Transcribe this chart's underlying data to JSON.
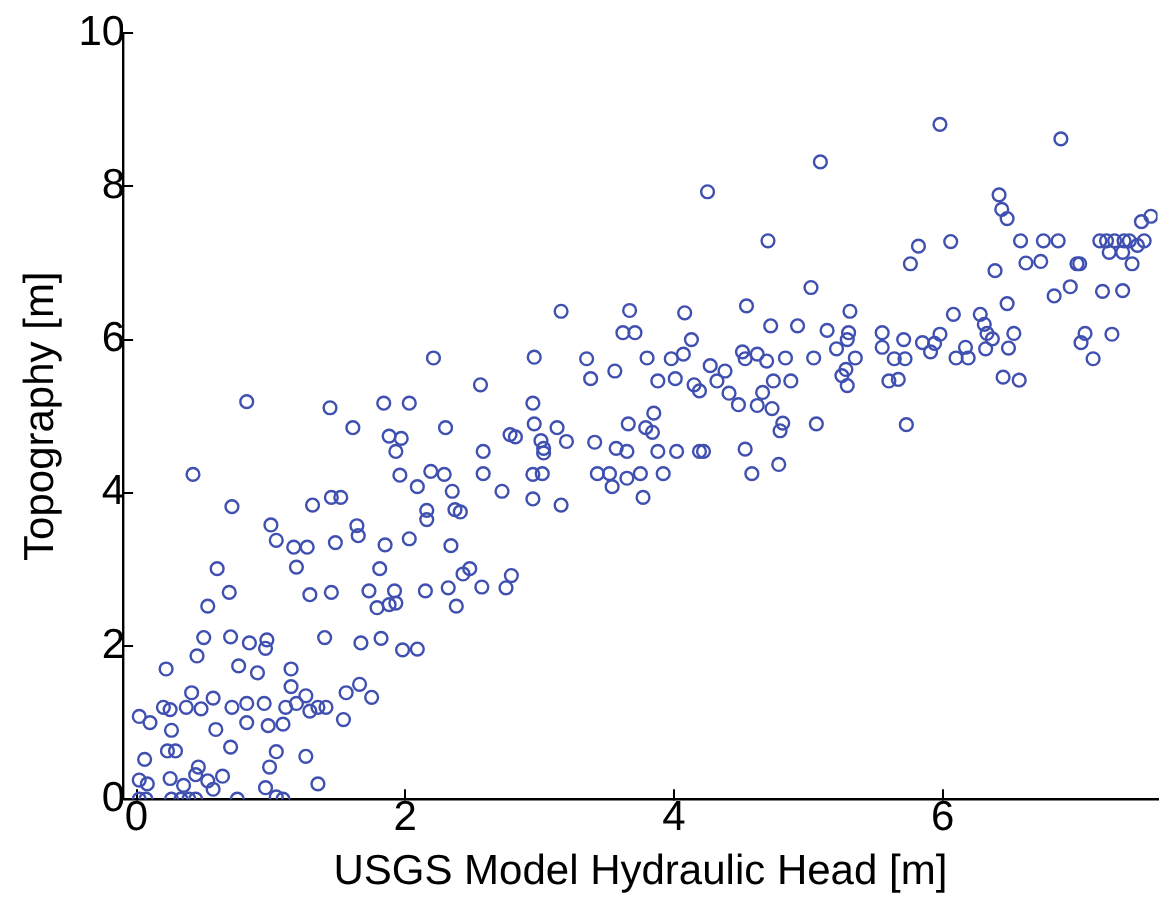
{
  "chart_data": {
    "type": "scatter",
    "xlabel": "USGS Model Hydraulic Head [m]",
    "ylabel": "Topography [m]",
    "xlim": [
      -0.1,
      7.6
    ],
    "ylim": [
      0,
      10
    ],
    "xticks": [
      0,
      2,
      4,
      6
    ],
    "yticks": [
      0,
      2,
      4,
      6,
      8,
      10
    ],
    "grid": false,
    "legend": false,
    "marker": "circle",
    "series": [
      {
        "color": "#4050b0",
        "x": [
          0.02,
          0.1,
          0.06,
          0.02,
          0.08,
          0.02,
          0.07,
          0.22,
          0.2,
          0.25,
          0.26,
          0.23,
          0.29,
          0.25,
          0.26,
          0.33,
          0.35,
          0.39,
          0.44,
          0.42,
          0.45,
          0.41,
          0.37,
          0.48,
          0.46,
          0.44,
          0.53,
          0.57,
          0.64,
          0.5,
          0.53,
          0.6,
          0.57,
          0.59,
          0.7,
          0.75,
          0.69,
          0.71,
          0.7,
          0.71,
          0.76,
          0.82,
          0.82,
          0.84,
          0.9,
          0.82,
          0.97,
          0.96,
          0.96,
          0.98,
          0.95,
          1.0,
          1.04,
          0.99,
          1.04,
          1.04,
          1.09,
          1.09,
          1.11,
          1.15,
          1.15,
          1.17,
          1.19,
          1.19,
          1.26,
          1.27,
          1.26,
          1.29,
          1.31,
          1.29,
          1.35,
          1.35,
          1.41,
          1.4,
          1.44,
          1.45,
          1.45,
          1.48,
          1.52,
          1.54,
          1.56,
          1.61,
          1.64,
          1.65,
          1.66,
          1.67,
          1.73,
          1.75,
          1.79,
          1.81,
          1.82,
          1.85,
          1.84,
          1.88,
          1.88,
          1.92,
          1.93,
          1.93,
          1.97,
          1.96,
          1.98,
          2.03,
          2.03,
          2.09,
          2.09,
          2.15,
          2.16,
          2.16,
          2.19,
          2.21,
          2.29,
          2.3,
          2.32,
          2.34,
          2.35,
          2.38,
          2.37,
          2.41,
          2.43,
          2.48,
          2.56,
          2.58,
          2.58,
          2.57,
          2.72,
          2.75,
          2.78,
          2.79,
          2.82,
          2.95,
          2.96,
          2.96,
          2.95,
          2.95,
          3.01,
          3.02,
          3.03,
          3.03,
          3.13,
          3.16,
          3.16,
          3.2,
          3.35,
          3.38,
          3.41,
          3.43,
          3.52,
          3.54,
          3.56,
          3.57,
          3.62,
          3.65,
          3.65,
          3.67,
          3.71,
          3.66,
          3.75,
          3.77,
          3.79,
          3.8,
          3.84,
          3.85,
          3.88,
          3.88,
          3.92,
          3.98,
          4.01,
          4.02,
          4.07,
          4.08,
          4.13,
          4.15,
          4.19,
          4.19,
          4.22,
          4.25,
          4.27,
          4.32,
          4.38,
          4.41,
          4.48,
          4.51,
          4.53,
          4.54,
          4.53,
          4.58,
          4.62,
          4.62,
          4.66,
          4.69,
          4.7,
          4.72,
          4.73,
          4.74,
          4.79,
          4.78,
          4.81,
          4.83,
          4.87,
          4.92,
          5.02,
          5.04,
          5.06,
          5.09,
          5.14,
          5.21,
          5.25,
          5.28,
          5.29,
          5.29,
          5.3,
          5.31,
          5.35,
          5.55,
          5.55,
          5.6,
          5.64,
          5.67,
          5.72,
          5.71,
          5.73,
          5.76,
          5.82,
          5.85,
          5.91,
          5.94,
          5.98,
          5.98,
          6.06,
          6.08,
          6.1,
          6.17,
          6.19,
          6.28,
          6.31,
          6.32,
          6.33,
          6.37,
          6.39,
          6.42,
          6.44,
          6.48,
          6.45,
          6.48,
          6.49,
          6.53,
          6.57,
          6.58,
          6.62,
          6.73,
          6.75,
          6.83,
          6.86,
          6.88,
          6.95,
          7.0,
          7.02,
          7.03,
          7.06,
          7.12,
          7.17,
          7.19,
          7.22,
          7.24,
          7.26,
          7.28,
          7.34,
          7.35,
          7.34,
          7.39,
          7.41,
          7.45,
          7.48,
          7.5,
          7.55
        ],
        "values": [
          1.08,
          1.0,
          0.52,
          0.25,
          0.2,
          0,
          0,
          1.7,
          1.2,
          1.17,
          0.9,
          0.63,
          0.63,
          0.27,
          0,
          0,
          0.18,
          0,
          0,
          4.24,
          1.87,
          1.39,
          1.2,
          1.18,
          0.42,
          0.32,
          0.24,
          0.13,
          0.3,
          2.11,
          2.52,
          3.01,
          1.32,
          0.91,
          0.68,
          0,
          2.7,
          3.82,
          2.12,
          1.2,
          1.74,
          5.19,
          1.25,
          2.04,
          1.65,
          1.0,
          2.08,
          1.97,
          0.15,
          0.96,
          1.25,
          3.58,
          3.38,
          0.42,
          0.62,
          0.03,
          0,
          0.98,
          1.2,
          1.7,
          1.47,
          3.29,
          1.25,
          3.03,
          1.35,
          3.29,
          0.56,
          2.67,
          3.84,
          1.15,
          1.2,
          0.2,
          1.2,
          2.11,
          5.11,
          3.94,
          2.7,
          3.35,
          3.94,
          1.04,
          1.39,
          4.85,
          3.57,
          3.44,
          1.5,
          2.04,
          2.72,
          1.33,
          2.5,
          3.01,
          2.1,
          3.32,
          5.17,
          4.74,
          2.54,
          2.72,
          2.56,
          4.54,
          4.71,
          4.23,
          1.95,
          3.4,
          5.17,
          1.96,
          4.08,
          2.72,
          3.77,
          3.65,
          4.28,
          5.76,
          4.24,
          4.85,
          2.76,
          3.31,
          4.02,
          2.52,
          3.78,
          3.75,
          2.94,
          3.01,
          5.41,
          4.54,
          4.25,
          2.77,
          4.02,
          2.76,
          4.76,
          2.92,
          4.73,
          5.17,
          5.77,
          4.9,
          4.24,
          3.92,
          4.68,
          4.25,
          4.52,
          4.58,
          4.85,
          6.37,
          3.84,
          4.67,
          5.75,
          5.49,
          4.66,
          4.25,
          4.25,
          4.08,
          5.59,
          4.58,
          6.09,
          4.54,
          4.19,
          6.38,
          6.09,
          4.9,
          4.25,
          3.94,
          4.85,
          5.76,
          4.79,
          5.04,
          5.46,
          4.54,
          4.25,
          5.75,
          5.49,
          4.54,
          5.81,
          6.35,
          6.0,
          5.41,
          5.33,
          4.54,
          4.54,
          7.93,
          5.66,
          5.46,
          5.59,
          5.3,
          5.15,
          5.84,
          5.75,
          6.44,
          4.57,
          4.25,
          5.81,
          5.14,
          5.31,
          5.72,
          7.29,
          6.18,
          5.1,
          5.46,
          4.81,
          4.37,
          4.91,
          5.76,
          5.46,
          6.18,
          6.68,
          5.76,
          4.9,
          8.32,
          6.12,
          5.88,
          5.53,
          5.61,
          5.4,
          6.0,
          6.09,
          6.37,
          5.76,
          6.09,
          5.9,
          5.46,
          5.75,
          5.48,
          5.75,
          6.0,
          4.89,
          6.99,
          7.22,
          5.96,
          5.84,
          5.95,
          6.07,
          8.81,
          7.28,
          6.33,
          5.76,
          5.9,
          5.76,
          6.33,
          6.2,
          5.88,
          6.08,
          6.01,
          6.9,
          7.89,
          7.7,
          7.58,
          5.51,
          6.47,
          5.89,
          6.08,
          5.47,
          7.29,
          7.0,
          7.02,
          7.29,
          6.57,
          7.29,
          8.62,
          6.69,
          6.99,
          6.99,
          5.96,
          6.08,
          5.75,
          7.29,
          6.63,
          7.29,
          7.14,
          6.07,
          7.29,
          6.64,
          7.29,
          7.14,
          7.29,
          6.99,
          7.23,
          7.54,
          7.29,
          7.61
        ]
      }
    ]
  }
}
